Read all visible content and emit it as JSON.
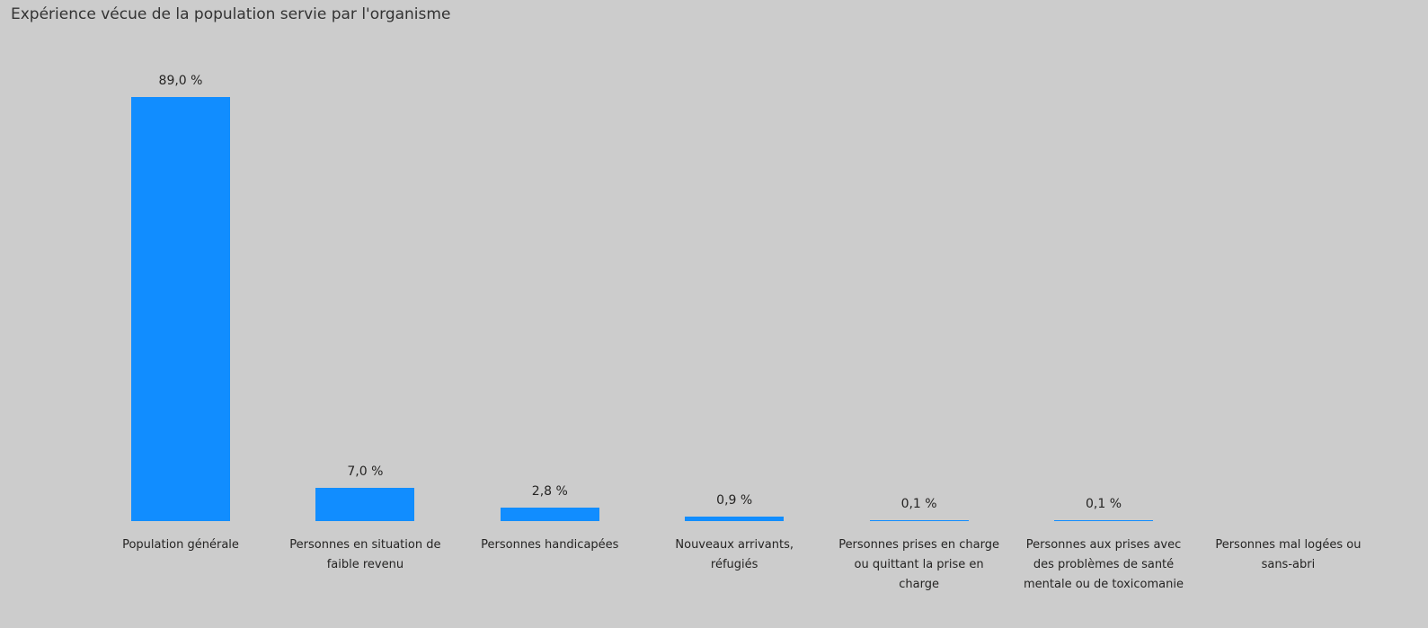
{
  "chart_data": {
    "type": "bar",
    "title": "Expérience vécue de la population servie par l'organisme",
    "categories": [
      "Population générale",
      "Personnes en situation de faible revenu",
      "Personnes handicapées",
      "Nouveaux arrivants, réfugiés",
      "Personnes prises en charge ou quittant la prise en charge",
      "Personnes aux prises avec des problèmes de santé mentale ou de toxicomanie",
      "Personnes mal logées ou sans-abri"
    ],
    "values": [
      89.0,
      7.0,
      2.8,
      0.9,
      0.1,
      0.1,
      null
    ],
    "value_labels": [
      "89,0 %",
      "7,0 %",
      "2,8 %",
      "0,9 %",
      "0,1 %",
      "0,1 %",
      null
    ],
    "color": "#118dff"
  }
}
